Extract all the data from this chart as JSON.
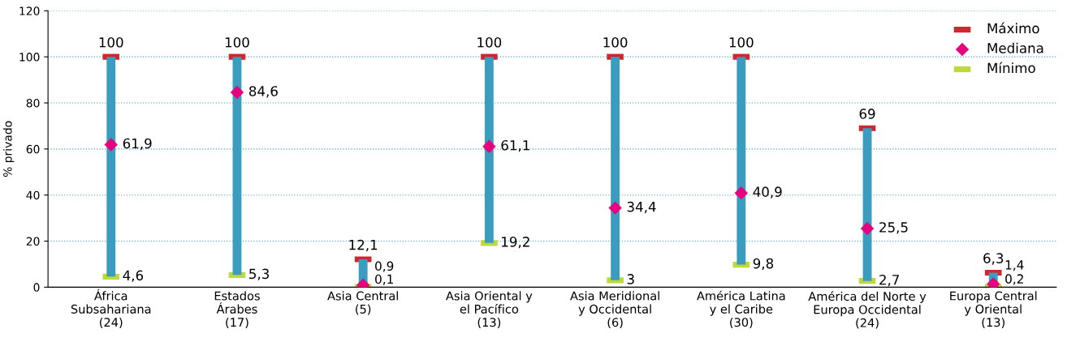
{
  "chart_data": {
    "type": "bar",
    "categories": [
      "África\nSubsahariana\n(24)",
      "Estados\nÁrabes\n(17)",
      "Asia Central\n(5)",
      "Asia Oriental y\nel Pacífico\n(13)",
      "Asia Meridional\ny Occidental\n(6)",
      "América Latina\ny el Caribe\n(30)",
      "América del Norte y\nEuropa Occidental\n(24)",
      "Europa Central\ny Oriental\n(13)"
    ],
    "ylabel": "% privado",
    "ylim": [
      0,
      120
    ],
    "yticks": [
      0,
      20,
      40,
      60,
      80,
      100,
      120
    ],
    "grid": "y",
    "legend": "top right",
    "series": [
      {
        "color": "#3a9dbf",
        "base": [
          4.6,
          5.3,
          0.1,
          19.2,
          3,
          9.8,
          2.7,
          0.2
        ],
        "values": [
          95.4,
          94.7,
          12.0,
          80.8,
          97,
          90.2,
          66.3,
          6.1
        ]
      },
      {
        "type": "scatter",
        "name": "Máximo",
        "color": "#d0262e",
        "marker": "square",
        "values": [
          100,
          100,
          12.1,
          100,
          100,
          100,
          69,
          6.3
        ],
        "value_labels": [
          "100",
          "100",
          "12,1",
          "100",
          "100",
          "100",
          "69",
          "6,3"
        ]
      },
      {
        "type": "scatter",
        "name": "Mediana",
        "color": "#e6007e",
        "marker": "diamond",
        "values": [
          61.9,
          84.6,
          0.9,
          61.1,
          34.4,
          40.9,
          25.5,
          1.4
        ],
        "value_labels": [
          "61,9",
          "84,6",
          "0,9",
          "61,1",
          "34,4",
          "40,9",
          "25,5",
          "1,4"
        ]
      },
      {
        "type": "scatter",
        "name": "Mínimo",
        "color": "#c0d93a",
        "marker": "square",
        "values": [
          4.6,
          5.3,
          0.1,
          19.2,
          3,
          9.8,
          2.7,
          0.2
        ],
        "value_labels": [
          "4,6",
          "5,3",
          "0,1",
          "19,2",
          "3",
          "9,8",
          "2,7",
          "0,2"
        ]
      }
    ]
  }
}
